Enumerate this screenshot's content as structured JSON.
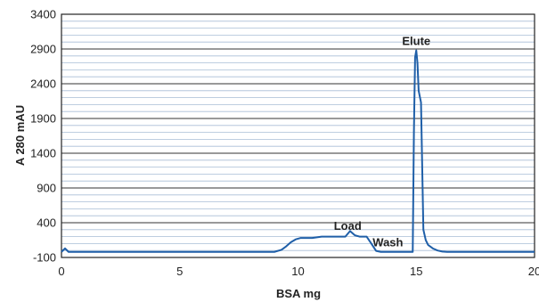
{
  "chart_data": {
    "type": "line",
    "title": "",
    "xlabel": "BSA mg",
    "ylabel": "A 280 mAU",
    "xlim": [
      0,
      20
    ],
    "ylim": [
      -100,
      3400
    ],
    "xticks": [
      "0",
      "5",
      "10",
      "15",
      "20"
    ],
    "yticks": [
      "3400",
      "2900",
      "2400",
      "1900",
      "1400",
      "900",
      "400",
      "-100"
    ],
    "grid": true,
    "minor_grid_step": 100,
    "legend": "none",
    "annotations": [
      {
        "text": "Load",
        "x": 12.1,
        "y": 300
      },
      {
        "text": "Wash",
        "x": 13.8,
        "y": 60
      },
      {
        "text": "Elute",
        "x": 15.0,
        "y": 2960
      }
    ],
    "colors": {
      "line": "#1f5fa8",
      "major_grid": "#333333",
      "minor_grid": "#a9bdd6",
      "frame": "#222222"
    },
    "series": [
      {
        "x": [
          0,
          0.15,
          0.3,
          0.5,
          1,
          2,
          3,
          4,
          5,
          6,
          7,
          8,
          9,
          9.3,
          9.5,
          9.7,
          9.9,
          10.1,
          10.3,
          10.6,
          11,
          11.3,
          11.6,
          12,
          12.2,
          12.4,
          12.6,
          12.9,
          13.1,
          13.3,
          13.5,
          14,
          14.5,
          14.85,
          14.9,
          14.95,
          15.0,
          15.05,
          15.1,
          15.2,
          15.3,
          15.4,
          15.5,
          15.7,
          15.9,
          16.1,
          16.3,
          17,
          18,
          19,
          20
        ],
        "y": [
          -20,
          30,
          -20,
          -20,
          -20,
          -20,
          -20,
          -20,
          -20,
          -20,
          -20,
          -20,
          -20,
          10,
          60,
          120,
          160,
          180,
          180,
          180,
          200,
          200,
          200,
          200,
          280,
          220,
          200,
          200,
          100,
          -5,
          -20,
          -20,
          -20,
          -20,
          1700,
          2780,
          2880,
          2700,
          2300,
          2130,
          300,
          150,
          80,
          30,
          0,
          -15,
          -20,
          -20,
          -20,
          -20,
          -20
        ]
      }
    ]
  }
}
